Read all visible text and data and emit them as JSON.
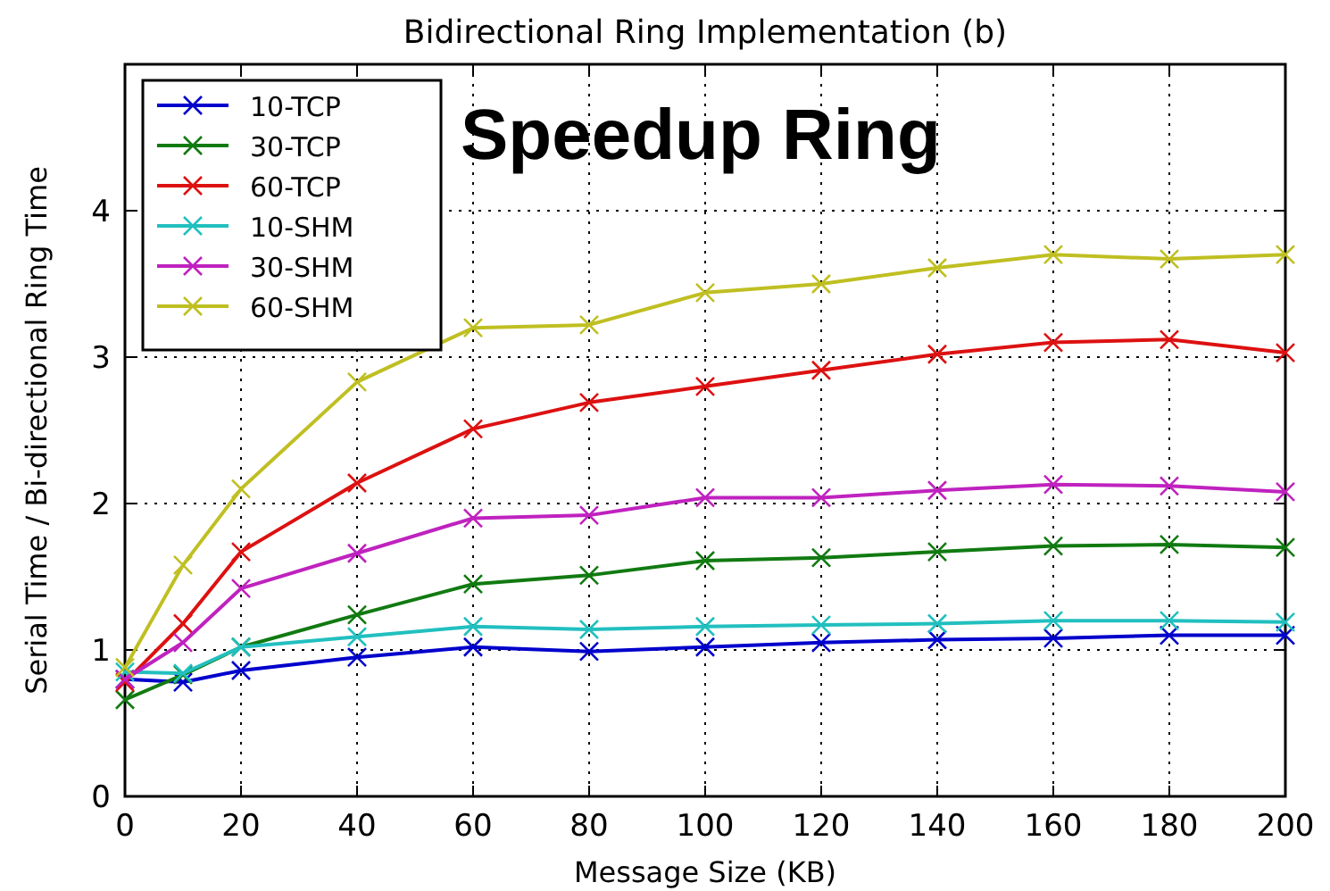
{
  "chart_data": {
    "type": "line",
    "title": "Bidirectional Ring Implementation (b)",
    "xlabel": "Message Size (KB)",
    "ylabel": "Serial Time / Bi-directional Ring Time",
    "annotations": [
      "Speedup Ring"
    ],
    "x": [
      0,
      10,
      20,
      40,
      60,
      80,
      100,
      120,
      140,
      160,
      180,
      200
    ],
    "series": [
      {
        "name": "10-TCP",
        "color": "#0000cc",
        "values": [
          0.8,
          0.78,
          0.86,
          0.95,
          1.02,
          0.99,
          1.02,
          1.05,
          1.07,
          1.08,
          1.1,
          1.1
        ]
      },
      {
        "name": "30-TCP",
        "color": "#117a11",
        "values": [
          0.66,
          0.83,
          1.02,
          1.24,
          1.45,
          1.51,
          1.61,
          1.63,
          1.67,
          1.71,
          1.72,
          1.7
        ]
      },
      {
        "name": "60-TCP",
        "color": "#dd1111",
        "values": [
          0.78,
          1.18,
          1.67,
          2.14,
          2.51,
          2.69,
          2.8,
          2.91,
          3.02,
          3.1,
          3.12,
          3.03
        ]
      },
      {
        "name": "10-SHM",
        "color": "#22bfbf",
        "values": [
          0.85,
          0.84,
          1.02,
          1.09,
          1.16,
          1.14,
          1.16,
          1.17,
          1.18,
          1.2,
          1.2,
          1.19
        ]
      },
      {
        "name": "30-SHM",
        "color": "#bf22bf",
        "values": [
          0.8,
          1.05,
          1.42,
          1.66,
          1.9,
          1.92,
          2.04,
          2.04,
          2.09,
          2.13,
          2.12,
          2.08
        ]
      },
      {
        "name": "60-SHM",
        "color": "#bfbf22",
        "values": [
          0.88,
          1.58,
          2.1,
          2.83,
          3.2,
          3.22,
          3.44,
          3.5,
          3.61,
          3.7,
          3.67,
          3.7
        ]
      }
    ],
    "xlim": [
      0,
      200
    ],
    "xticks": [
      0,
      20,
      40,
      60,
      80,
      100,
      120,
      140,
      160,
      180,
      200
    ],
    "ylim": [
      0,
      5
    ],
    "yticks": [
      0,
      1,
      2,
      3,
      4,
      {
        "value": 5,
        "label": null
      }
    ],
    "grid": true,
    "legend": "top left",
    "marker": "cross",
    "line_style": "solid"
  }
}
